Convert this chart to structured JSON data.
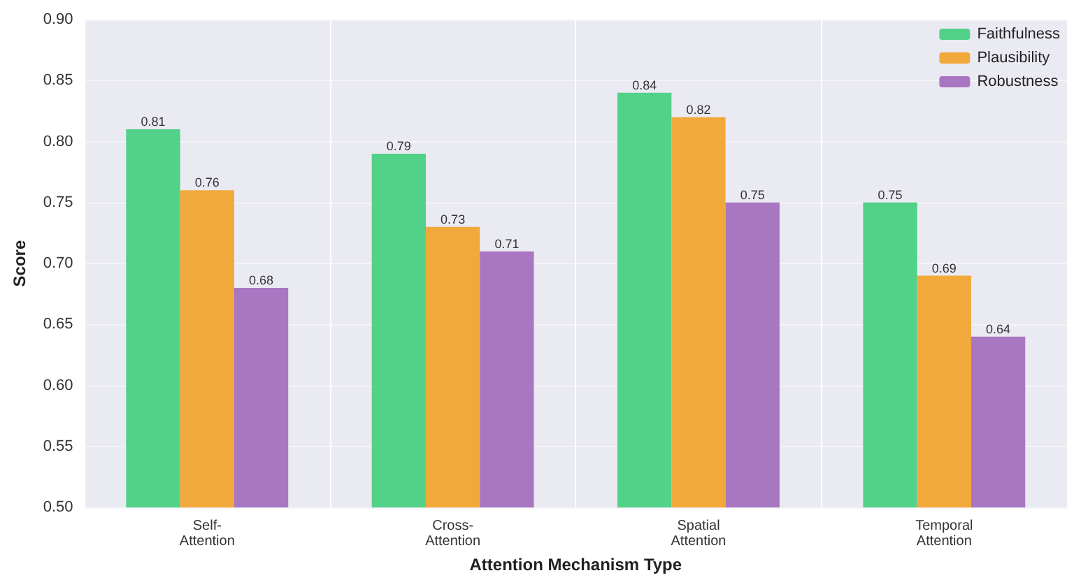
{
  "chart_data": {
    "type": "bar",
    "xlabel": "Attention Mechanism Type",
    "ylabel": "Score",
    "categories": [
      "Self-\nAttention",
      "Cross-\nAttention",
      "Spatial\nAttention",
      "Temporal\nAttention"
    ],
    "series": [
      {
        "name": "Faithfulness",
        "color": "#52d188",
        "values": [
          0.81,
          0.79,
          0.84,
          0.75
        ]
      },
      {
        "name": "Plausibility",
        "color": "#f2a93b",
        "values": [
          0.76,
          0.73,
          0.82,
          0.69
        ]
      },
      {
        "name": "Robustness",
        "color": "#a977c2",
        "values": [
          0.68,
          0.71,
          0.75,
          0.64
        ]
      }
    ],
    "ylim": [
      0.5,
      0.9
    ],
    "yticks": [
      "0.50",
      "0.55",
      "0.60",
      "0.65",
      "0.70",
      "0.75",
      "0.80",
      "0.85",
      "0.90"
    ],
    "data_labels": true,
    "grid": true,
    "legend": "top right"
  }
}
